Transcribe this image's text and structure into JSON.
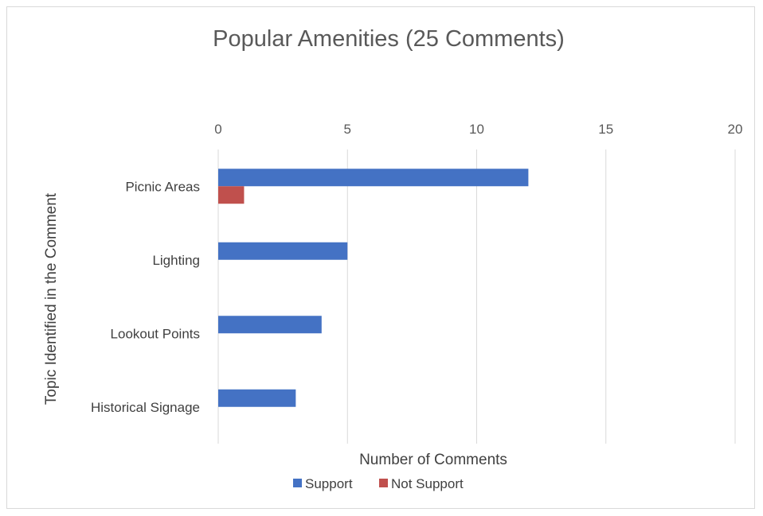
{
  "chart_data": {
    "type": "bar",
    "orientation": "horizontal",
    "title": "Popular Amenities (25 Comments)",
    "xlabel": "Number of Comments",
    "ylabel": "Topic Identified in the Comment",
    "xlim": [
      0,
      20
    ],
    "xticks": [
      "0",
      "5",
      "10",
      "15",
      "20"
    ],
    "x_axis_position": "top",
    "grid": true,
    "categories": [
      "Picnic Areas",
      "Lighting",
      "Lookout Points",
      "Historical Signage"
    ],
    "series": [
      {
        "name": "Support",
        "values": [
          12,
          5,
          4,
          3
        ],
        "color": "#4472C4"
      },
      {
        "name": "Not Support",
        "values": [
          1,
          0,
          0,
          0
        ],
        "color": "#C0504D"
      }
    ],
    "legend_position": "bottom"
  }
}
